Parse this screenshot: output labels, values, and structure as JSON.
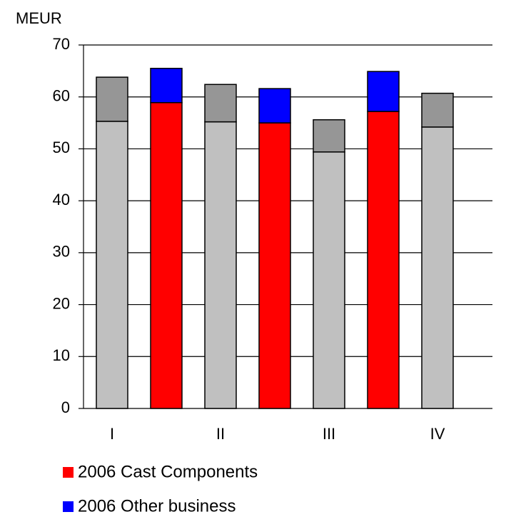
{
  "chart_data": {
    "type": "stacked_bar",
    "y_label": "MEUR",
    "categories": [
      "I",
      null,
      "II",
      null,
      "III",
      null,
      "IV"
    ],
    "series": [
      {
        "color": "#c0c0c0",
        "values": [
          55.3,
          null,
          55.2,
          null,
          49.4,
          null,
          54.2
        ]
      },
      {
        "color": "#969696",
        "values": [
          8.5,
          null,
          7.2,
          null,
          6.2,
          null,
          6.5
        ]
      },
      {
        "name": "2006 Cast Components",
        "color": "#ff0000",
        "values": [
          null,
          58.9,
          null,
          55.0,
          null,
          57.2,
          null
        ]
      },
      {
        "name": "2006 Other business",
        "color": "#0000ff",
        "values": [
          null,
          6.6,
          null,
          6.6,
          null,
          7.7,
          null
        ]
      }
    ],
    "ylim": [
      0,
      70
    ],
    "yticks": [
      0,
      10,
      20,
      30,
      40,
      50,
      60,
      70
    ],
    "grid": true,
    "legend": "bottom"
  }
}
